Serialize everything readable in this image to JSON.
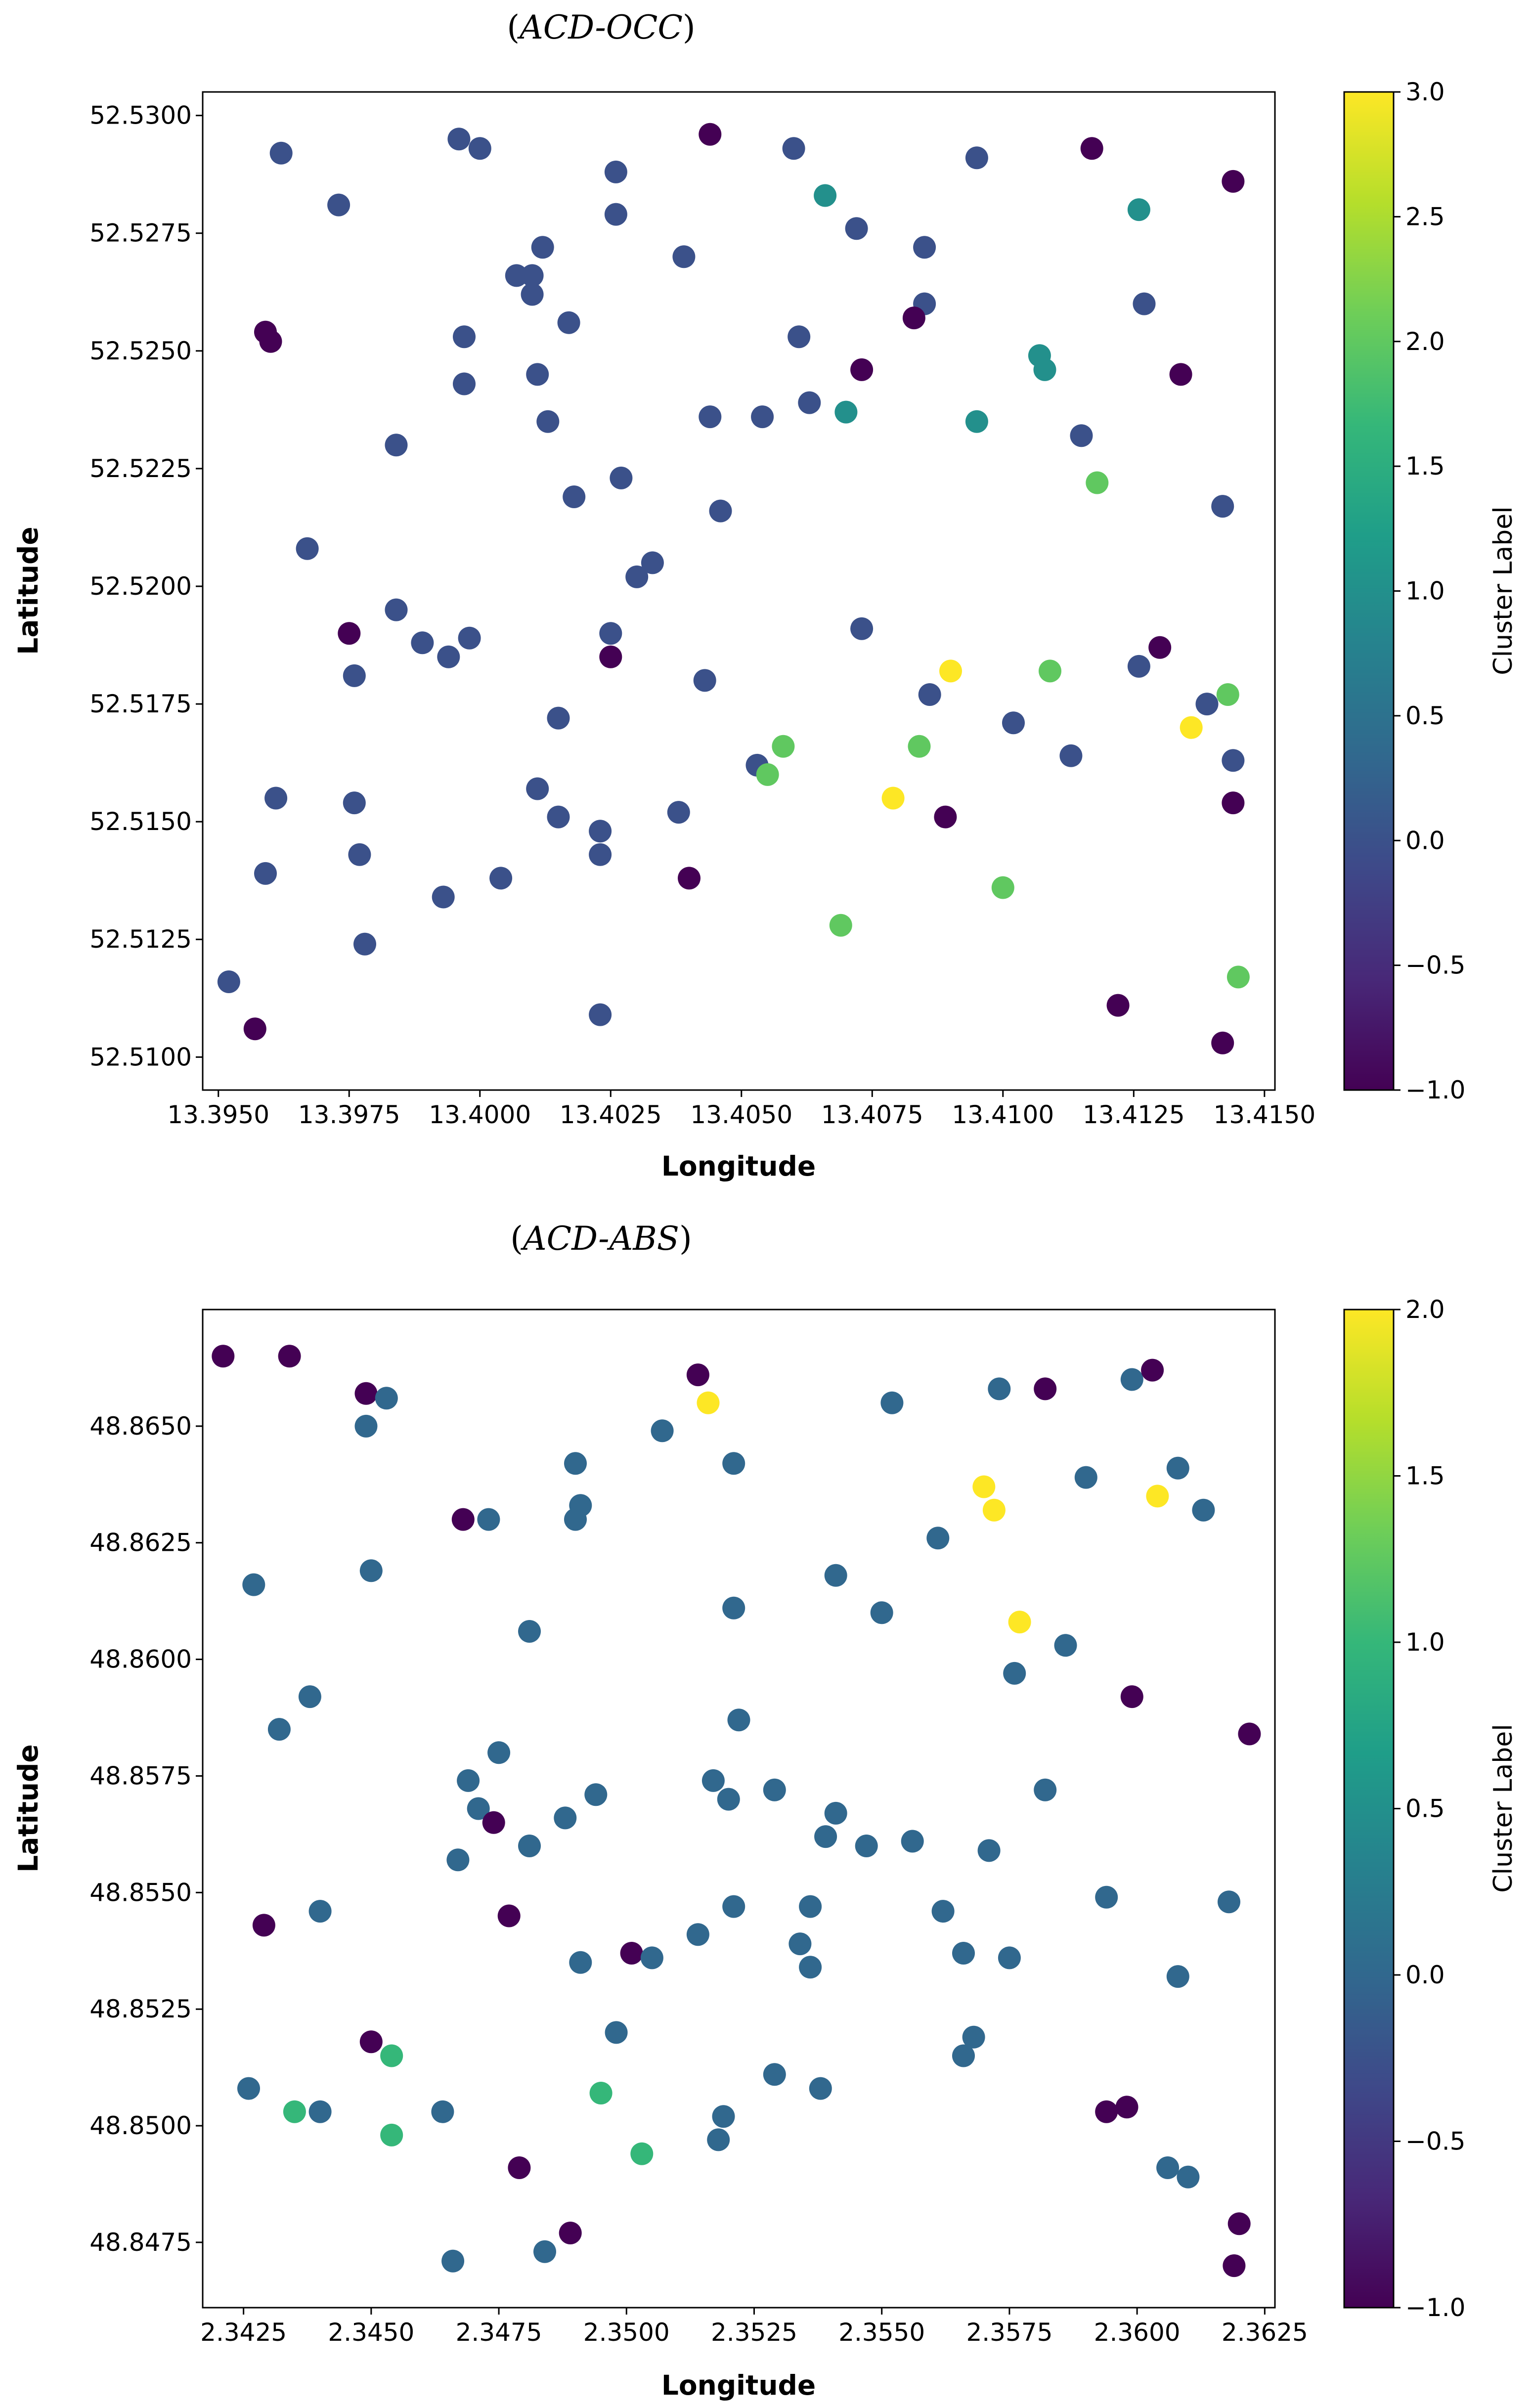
{
  "chart_data": [
    {
      "type": "scatter",
      "title": "(ACD-OCC)",
      "title_prefix": "(",
      "title_italic": "ACD-OCC",
      "title_suffix": ")",
      "xlabel": "Longitude",
      "ylabel": "Latitude",
      "xlim": [
        13.3947,
        13.4152
      ],
      "ylim": [
        52.5093,
        52.5305
      ],
      "xticks": [
        13.395,
        13.3975,
        13.4,
        13.4025,
        13.405,
        13.4075,
        13.41,
        13.4125,
        13.415
      ],
      "xtick_labels": [
        "13.3950",
        "13.3975",
        "13.4000",
        "13.4025",
        "13.4050",
        "13.4075",
        "13.4100",
        "13.4125",
        "13.4150"
      ],
      "yticks": [
        52.51,
        52.5125,
        52.515,
        52.5175,
        52.52,
        52.5225,
        52.525,
        52.5275,
        52.53
      ],
      "ytick_labels": [
        "52.5100",
        "52.5125",
        "52.5150",
        "52.5175",
        "52.5200",
        "52.5225",
        "52.5250",
        "52.5275",
        "52.5300"
      ],
      "colorbar": {
        "label": "Cluster Label",
        "min": -1.0,
        "max": 3.0,
        "ticks": [
          -1.0,
          -0.5,
          0.0,
          0.5,
          1.0,
          1.5,
          2.0,
          2.5,
          3.0
        ],
        "tick_labels": [
          "−1.0",
          "−0.5",
          "0.0",
          "0.5",
          "1.0",
          "1.5",
          "2.0",
          "2.5",
          "3.0"
        ]
      },
      "points": [
        [
          13.3962,
          52.5292,
          0
        ],
        [
          13.3973,
          52.5281,
          0
        ],
        [
          13.3996,
          52.5295,
          0
        ],
        [
          13.4,
          52.5293,
          0
        ],
        [
          13.4044,
          52.5296,
          -1
        ],
        [
          13.406,
          52.5293,
          0
        ],
        [
          13.4095,
          52.5291,
          0
        ],
        [
          13.4117,
          52.5293,
          -1
        ],
        [
          13.4144,
          52.5286,
          -1
        ],
        [
          13.4026,
          52.5288,
          0
        ],
        [
          13.4026,
          52.5279,
          0
        ],
        [
          13.4066,
          52.5283,
          1
        ],
        [
          13.4072,
          52.5276,
          0
        ],
        [
          13.4085,
          52.5272,
          0
        ],
        [
          13.4126,
          52.528,
          1
        ],
        [
          13.4039,
          52.527,
          0
        ],
        [
          13.4012,
          52.5272,
          0
        ],
        [
          13.4007,
          52.5266,
          0
        ],
        [
          13.401,
          52.5266,
          0
        ],
        [
          13.401,
          52.5262,
          0
        ],
        [
          13.4017,
          52.5256,
          0
        ],
        [
          13.3997,
          52.5253,
          0
        ],
        [
          13.3959,
          52.5254,
          -1
        ],
        [
          13.396,
          52.5252,
          -1
        ],
        [
          13.4061,
          52.5253,
          0
        ],
        [
          13.4085,
          52.526,
          0
        ],
        [
          13.4083,
          52.5257,
          -1
        ],
        [
          13.4127,
          52.526,
          0
        ],
        [
          13.4011,
          52.5245,
          0
        ],
        [
          13.3997,
          52.5243,
          0
        ],
        [
          13.4073,
          52.5246,
          -1
        ],
        [
          13.4107,
          52.5249,
          1
        ],
        [
          13.4108,
          52.5246,
          1
        ],
        [
          13.4134,
          52.5245,
          -1
        ],
        [
          13.4013,
          52.5235,
          0
        ],
        [
          13.4044,
          52.5236,
          0
        ],
        [
          13.4054,
          52.5236,
          0
        ],
        [
          13.4063,
          52.5239,
          0
        ],
        [
          13.407,
          52.5237,
          1
        ],
        [
          13.4095,
          52.5235,
          1
        ],
        [
          13.4115,
          52.5232,
          0
        ],
        [
          13.3984,
          52.523,
          0
        ],
        [
          13.4027,
          52.5223,
          0
        ],
        [
          13.4118,
          52.5222,
          2
        ],
        [
          13.4018,
          52.5219,
          0
        ],
        [
          13.4046,
          52.5216,
          0
        ],
        [
          13.4142,
          52.5217,
          0
        ],
        [
          13.3967,
          52.5208,
          0
        ],
        [
          13.4033,
          52.5205,
          0
        ],
        [
          13.403,
          52.5202,
          0
        ],
        [
          13.3984,
          52.5195,
          0
        ],
        [
          13.3975,
          52.519,
          -1
        ],
        [
          13.3989,
          52.5188,
          0
        ],
        [
          13.3998,
          52.5189,
          0
        ],
        [
          13.3994,
          52.5185,
          0
        ],
        [
          13.4025,
          52.519,
          0
        ],
        [
          13.4025,
          52.5185,
          -1
        ],
        [
          13.4073,
          52.5191,
          0
        ],
        [
          13.3976,
          52.5181,
          0
        ],
        [
          13.4043,
          52.518,
          0
        ],
        [
          13.409,
          52.5182,
          3
        ],
        [
          13.4109,
          52.5182,
          2
        ],
        [
          13.4126,
          52.5183,
          0
        ],
        [
          13.413,
          52.5187,
          -1
        ],
        [
          13.4086,
          52.5177,
          0
        ],
        [
          13.4015,
          52.5172,
          0
        ],
        [
          13.4102,
          52.5171,
          0
        ],
        [
          13.4136,
          52.517,
          3
        ],
        [
          13.4139,
          52.5175,
          0
        ],
        [
          13.4143,
          52.5177,
          2
        ],
        [
          13.4058,
          52.5166,
          2
        ],
        [
          13.4084,
          52.5166,
          2
        ],
        [
          13.4113,
          52.5164,
          0
        ],
        [
          13.4053,
          52.5162,
          0
        ],
        [
          13.4055,
          52.516,
          2
        ],
        [
          13.4144,
          52.5163,
          0
        ],
        [
          13.3961,
          52.5155,
          0
        ],
        [
          13.3976,
          52.5154,
          0
        ],
        [
          13.4011,
          52.5157,
          0
        ],
        [
          13.4079,
          52.5155,
          3
        ],
        [
          13.4144,
          52.5154,
          -1
        ],
        [
          13.4015,
          52.5151,
          0
        ],
        [
          13.4038,
          52.5152,
          0
        ],
        [
          13.4089,
          52.5151,
          -1
        ],
        [
          13.4023,
          52.5148,
          0
        ],
        [
          13.4023,
          52.5143,
          0
        ],
        [
          13.3977,
          52.5143,
          0
        ],
        [
          13.3959,
          52.5139,
          0
        ],
        [
          13.4004,
          52.5138,
          0
        ],
        [
          13.404,
          52.5138,
          -1
        ],
        [
          13.41,
          52.5136,
          2
        ],
        [
          13.3993,
          52.5134,
          0
        ],
        [
          13.3978,
          52.5124,
          0
        ],
        [
          13.4069,
          52.5128,
          2
        ],
        [
          13.3952,
          52.5116,
          0
        ],
        [
          13.4145,
          52.5117,
          2
        ],
        [
          13.3957,
          52.5106,
          -1
        ],
        [
          13.4023,
          52.5109,
          0
        ],
        [
          13.4122,
          52.5111,
          -1
        ],
        [
          13.4142,
          52.5103,
          -1
        ]
      ]
    },
    {
      "type": "scatter",
      "title": "(ACD-ABS)",
      "title_prefix": "(",
      "title_italic": "ACD-ABS",
      "title_suffix": ")",
      "xlabel": "Longitude",
      "ylabel": "Latitude",
      "xlim": [
        2.3417,
        2.3627
      ],
      "ylim": [
        48.8461,
        48.8675
      ],
      "xticks": [
        2.3425,
        2.345,
        2.3475,
        2.35,
        2.3525,
        2.355,
        2.3575,
        2.36,
        2.3625
      ],
      "xtick_labels": [
        "2.3425",
        "2.3450",
        "2.3475",
        "2.3500",
        "2.3525",
        "2.3550",
        "2.3575",
        "2.3600",
        "2.3625"
      ],
      "yticks": [
        48.8475,
        48.85,
        48.8525,
        48.855,
        48.8575,
        48.86,
        48.8625,
        48.865
      ],
      "ytick_labels": [
        "48.8475",
        "48.8500",
        "48.8525",
        "48.8550",
        "48.8575",
        "48.8600",
        "48.8625",
        "48.8650"
      ],
      "colorbar": {
        "label": "Cluster Label",
        "min": -1.0,
        "max": 2.0,
        "ticks": [
          -1.0,
          -0.5,
          0.0,
          0.5,
          1.0,
          1.5,
          2.0
        ],
        "tick_labels": [
          "−1.0",
          "−0.5",
          "0.0",
          "0.5",
          "1.0",
          "1.5",
          "2.0"
        ]
      },
      "points": [
        [
          2.3421,
          48.8665,
          -1
        ],
        [
          2.3434,
          48.8665,
          -1
        ],
        [
          2.3449,
          48.8657,
          -1
        ],
        [
          2.3453,
          48.8656,
          0
        ],
        [
          2.3514,
          48.8661,
          -1
        ],
        [
          2.3516,
          48.8655,
          2
        ],
        [
          2.3552,
          48.8655,
          0
        ],
        [
          2.3573,
          48.8658,
          0
        ],
        [
          2.3582,
          48.8658,
          -1
        ],
        [
          2.3599,
          48.866,
          0
        ],
        [
          2.3603,
          48.8662,
          -1
        ],
        [
          2.3449,
          48.865,
          0
        ],
        [
          2.3507,
          48.8649,
          0
        ],
        [
          2.349,
          48.8642,
          0
        ],
        [
          2.3521,
          48.8642,
          0
        ],
        [
          2.3608,
          48.8641,
          0
        ],
        [
          2.359,
          48.8639,
          0
        ],
        [
          2.357,
          48.8637,
          2
        ],
        [
          2.3604,
          48.8635,
          2
        ],
        [
          2.3572,
          48.8632,
          2
        ],
        [
          2.3613,
          48.8632,
          0
        ],
        [
          2.3491,
          48.8633,
          0
        ],
        [
          2.349,
          48.863,
          0
        ],
        [
          2.3468,
          48.863,
          -1
        ],
        [
          2.3473,
          48.863,
          0
        ],
        [
          2.3561,
          48.8626,
          0
        ],
        [
          2.345,
          48.8619,
          0
        ],
        [
          2.3427,
          48.8616,
          0
        ],
        [
          2.3541,
          48.8618,
          0
        ],
        [
          2.3521,
          48.8611,
          0
        ],
        [
          2.355,
          48.861,
          0
        ],
        [
          2.3577,
          48.8608,
          2
        ],
        [
          2.3481,
          48.8606,
          0
        ],
        [
          2.3586,
          48.8603,
          0
        ],
        [
          2.3576,
          48.8597,
          0
        ],
        [
          2.3438,
          48.8592,
          0
        ],
        [
          2.3599,
          48.8592,
          -1
        ],
        [
          2.3432,
          48.8585,
          0
        ],
        [
          2.3522,
          48.8587,
          0
        ],
        [
          2.3622,
          48.8584,
          -1
        ],
        [
          2.3475,
          48.858,
          0
        ],
        [
          2.3469,
          48.8574,
          0
        ],
        [
          2.3517,
          48.8574,
          0
        ],
        [
          2.3471,
          48.8568,
          0
        ],
        [
          2.352,
          48.857,
          0
        ],
        [
          2.3529,
          48.8572,
          0
        ],
        [
          2.3494,
          48.8571,
          0
        ],
        [
          2.3582,
          48.8572,
          0
        ],
        [
          2.3474,
          48.8565,
          -1
        ],
        [
          2.3488,
          48.8566,
          0
        ],
        [
          2.3541,
          48.8567,
          0
        ],
        [
          2.3481,
          48.856,
          0
        ],
        [
          2.3539,
          48.8562,
          0
        ],
        [
          2.3547,
          48.856,
          0
        ],
        [
          2.3556,
          48.8561,
          0
        ],
        [
          2.3571,
          48.8559,
          0
        ],
        [
          2.3467,
          48.8557,
          0
        ],
        [
          2.3594,
          48.8549,
          0
        ],
        [
          2.3618,
          48.8548,
          0
        ],
        [
          2.344,
          48.8546,
          0
        ],
        [
          2.3521,
          48.8547,
          0
        ],
        [
          2.3536,
          48.8547,
          0
        ],
        [
          2.3562,
          48.8546,
          0
        ],
        [
          2.3429,
          48.8543,
          -1
        ],
        [
          2.3477,
          48.8545,
          -1
        ],
        [
          2.3514,
          48.8541,
          0
        ],
        [
          2.3534,
          48.8539,
          0
        ],
        [
          2.3501,
          48.8537,
          -1
        ],
        [
          2.3505,
          48.8536,
          0
        ],
        [
          2.3566,
          48.8537,
          0
        ],
        [
          2.3575,
          48.8536,
          0
        ],
        [
          2.3491,
          48.8535,
          0
        ],
        [
          2.3536,
          48.8534,
          0
        ],
        [
          2.3608,
          48.8532,
          0
        ],
        [
          2.3498,
          48.852,
          0
        ],
        [
          2.345,
          48.8518,
          -1
        ],
        [
          2.3568,
          48.8519,
          0
        ],
        [
          2.3454,
          48.8515,
          1
        ],
        [
          2.3566,
          48.8515,
          0
        ],
        [
          2.3426,
          48.8508,
          0
        ],
        [
          2.3529,
          48.8511,
          0
        ],
        [
          2.3538,
          48.8508,
          0
        ],
        [
          2.3495,
          48.8507,
          1
        ],
        [
          2.3435,
          48.8503,
          1
        ],
        [
          2.344,
          48.8503,
          0
        ],
        [
          2.3464,
          48.8503,
          0
        ],
        [
          2.3519,
          48.8502,
          0
        ],
        [
          2.3594,
          48.8503,
          -1
        ],
        [
          2.3598,
          48.8504,
          -1
        ],
        [
          2.3454,
          48.8498,
          1
        ],
        [
          2.3518,
          48.8497,
          0
        ],
        [
          2.3503,
          48.8494,
          1
        ],
        [
          2.3479,
          48.8491,
          -1
        ],
        [
          2.3606,
          48.8491,
          0
        ],
        [
          2.361,
          48.8489,
          0
        ],
        [
          2.3489,
          48.8477,
          -1
        ],
        [
          2.362,
          48.8479,
          -1
        ],
        [
          2.3484,
          48.8473,
          0
        ],
        [
          2.3466,
          48.8471,
          0
        ],
        [
          2.3619,
          48.847,
          -1
        ]
      ]
    }
  ],
  "palette": {
    "viridis": [
      "#440154",
      "#482878",
      "#3e4989",
      "#31688e",
      "#26828e",
      "#1f9e89",
      "#35b779",
      "#6ece58",
      "#b5de2b",
      "#fde725"
    ],
    "frame": "#000000",
    "background": "#ffffff"
  }
}
